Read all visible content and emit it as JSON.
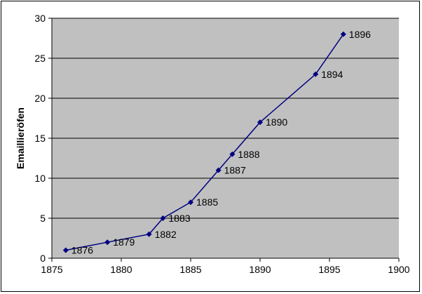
{
  "chart_data": {
    "type": "scatter",
    "title": "",
    "xlabel": "",
    "ylabel": "Emaillieröfen",
    "xlim": [
      1875,
      1900
    ],
    "ylim": [
      0,
      30
    ],
    "x_ticks": [
      1875,
      1880,
      1885,
      1890,
      1895,
      1900
    ],
    "y_ticks": [
      0,
      5,
      10,
      15,
      20,
      25,
      30
    ],
    "grid": "horizontal major gridlines",
    "legend": "none",
    "colors": {
      "plot_background": "#c0c0c0",
      "series": "#000080",
      "gridlines": "#000000"
    },
    "series": [
      {
        "points": [
          {
            "x": 1876,
            "y": 1,
            "label": "1876"
          },
          {
            "x": 1879,
            "y": 2,
            "label": "1879"
          },
          {
            "x": 1882,
            "y": 3,
            "label": "1882"
          },
          {
            "x": 1883,
            "y": 5,
            "label": "1883"
          },
          {
            "x": 1885,
            "y": 7,
            "label": "1885"
          },
          {
            "x": 1887,
            "y": 11,
            "label": "1887"
          },
          {
            "x": 1888,
            "y": 13,
            "label": "1888"
          },
          {
            "x": 1890,
            "y": 17,
            "label": "1890"
          },
          {
            "x": 1894,
            "y": 23,
            "label": "1894"
          },
          {
            "x": 1896,
            "y": 28,
            "label": "1896"
          }
        ]
      }
    ]
  }
}
